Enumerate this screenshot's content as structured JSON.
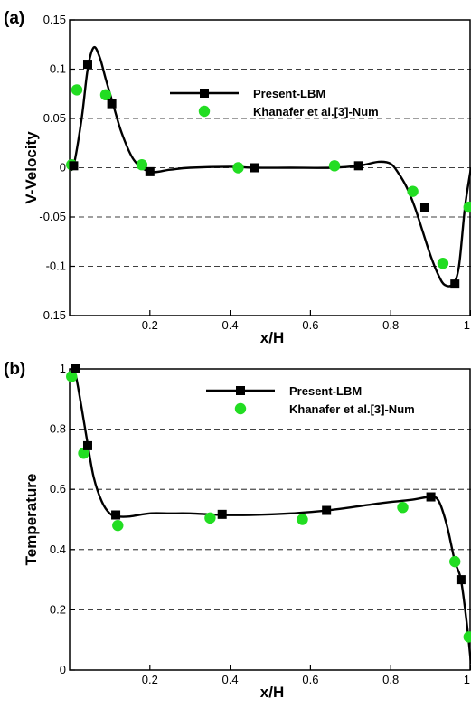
{
  "chart_data": [
    {
      "panel_label": "(a)",
      "type": "line",
      "xlabel": "x/H",
      "ylabel": "V-Velocity",
      "xlim": [
        0,
        1
      ],
      "ylim": [
        -0.15,
        0.15
      ],
      "x_ticks": [
        "0.2",
        "0.4",
        "0.6",
        "0.8",
        "1"
      ],
      "y_ticks": [
        "-0.15",
        "-0.1",
        "-0.05",
        "0",
        "0.05",
        "0.1",
        "0.15"
      ],
      "y_tick_values": [
        -0.15,
        -0.1,
        -0.05,
        0,
        0.05,
        0.1,
        0.15
      ],
      "grid": "dashed horizontal",
      "legend_position": "top-center",
      "series": [
        {
          "name": "Present-LBM",
          "style": "line with square markers",
          "color": "#000000",
          "curve": {
            "x": [
              0,
              0.01,
              0.03,
              0.045,
              0.06,
              0.075,
              0.09,
              0.11,
              0.13,
              0.16,
              0.2,
              0.25,
              0.3,
              0.4,
              0.46,
              0.55,
              0.65,
              0.72,
              0.77,
              0.8,
              0.82,
              0.84,
              0.86,
              0.88,
              0.9,
              0.92,
              0.935,
              0.955,
              0.97,
              0.985,
              1.0
            ],
            "y": [
              0,
              0.002,
              0.05,
              0.1,
              0.122,
              0.112,
              0.09,
              0.062,
              0.035,
              0.008,
              -0.004,
              -0.002,
              0,
              0.001,
              0,
              0,
              0,
              0.002,
              0.006,
              0.004,
              -0.006,
              -0.02,
              -0.04,
              -0.065,
              -0.09,
              -0.11,
              -0.119,
              -0.118,
              -0.1,
              -0.04,
              0
            ]
          },
          "markers": {
            "x": [
              0.01,
              0.045,
              0.105,
              0.2,
              0.46,
              0.72,
              0.885,
              0.96
            ],
            "y": [
              0.002,
              0.105,
              0.065,
              -0.004,
              0,
              0.002,
              -0.04,
              -0.118
            ]
          }
        },
        {
          "name": "Khanafer et al.[3]-Num",
          "style": "circle markers",
          "color": "#22dd22",
          "x": [
            0.005,
            0.018,
            0.09,
            0.18,
            0.42,
            0.66,
            0.855,
            0.93,
            0.995
          ],
          "y": [
            0.003,
            0.079,
            0.074,
            0.003,
            0,
            0.002,
            -0.024,
            -0.097,
            -0.04
          ]
        }
      ]
    },
    {
      "panel_label": "(b)",
      "type": "line",
      "xlabel": "x/H",
      "ylabel": "Temperature",
      "xlim": [
        0,
        1
      ],
      "ylim": [
        0,
        1
      ],
      "x_ticks": [
        "0.2",
        "0.4",
        "0.6",
        "0.8",
        "1"
      ],
      "y_ticks": [
        "0",
        "0.2",
        "0.4",
        "0.6",
        "0.8",
        "1"
      ],
      "y_tick_values": [
        0,
        0.2,
        0.4,
        0.6,
        0.8,
        1
      ],
      "grid": "dashed horizontal",
      "legend_position": "top-right",
      "series": [
        {
          "name": "Present-LBM",
          "style": "line with square markers",
          "color": "#000000",
          "curve": {
            "x": [
              0.005,
              0.015,
              0.03,
              0.045,
              0.06,
              0.08,
              0.1,
              0.12,
              0.15,
              0.2,
              0.25,
              0.3,
              0.38,
              0.45,
              0.55,
              0.64,
              0.7,
              0.78,
              0.85,
              0.9,
              0.92,
              0.94,
              0.96,
              0.975,
              0.99,
              1.0
            ],
            "y": [
              1.0,
              0.98,
              0.87,
              0.75,
              0.64,
              0.56,
              0.52,
              0.51,
              0.51,
              0.52,
              0.52,
              0.52,
              0.515,
              0.515,
              0.52,
              0.53,
              0.54,
              0.555,
              0.565,
              0.575,
              0.56,
              0.48,
              0.36,
              0.3,
              0.15,
              0.02
            ]
          },
          "markers": {
            "x": [
              0.015,
              0.045,
              0.115,
              0.38,
              0.64,
              0.9,
              0.975
            ],
            "y": [
              1.0,
              0.745,
              0.515,
              0.517,
              0.53,
              0.575,
              0.3
            ]
          }
        },
        {
          "name": "Khanafer et al.[3]-Num",
          "style": "circle markers",
          "color": "#22dd22",
          "x": [
            0.005,
            0.035,
            0.12,
            0.35,
            0.58,
            0.83,
            0.96,
            0.995
          ],
          "y": [
            0.975,
            0.72,
            0.48,
            0.505,
            0.5,
            0.54,
            0.36,
            0.11
          ]
        }
      ]
    }
  ]
}
